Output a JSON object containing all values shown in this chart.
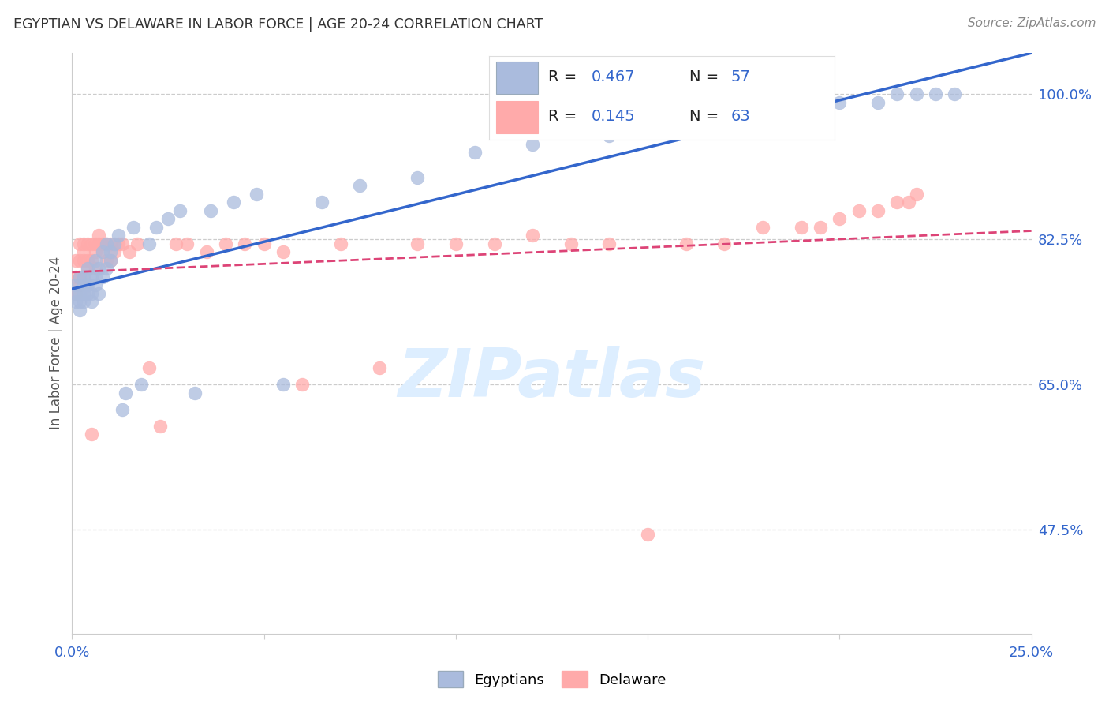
{
  "title": "EGYPTIAN VS DELAWARE IN LABOR FORCE | AGE 20-24 CORRELATION CHART",
  "source": "Source: ZipAtlas.com",
  "ylabel": "In Labor Force | Age 20-24",
  "ytick_labels": [
    "100.0%",
    "82.5%",
    "65.0%",
    "47.5%"
  ],
  "ytick_values": [
    1.0,
    0.825,
    0.65,
    0.475
  ],
  "xlim": [
    0.0,
    0.25
  ],
  "ylim": [
    0.35,
    1.05
  ],
  "watermark": "ZIPatlas",
  "blue_scatter": "#aabbdd",
  "pink_scatter": "#ffaaaa",
  "blue_line": "#3366cc",
  "pink_line": "#dd4477",
  "title_color": "#333333",
  "axis_color": "#3366cc",
  "egyptians_x": [
    0.001,
    0.001,
    0.001,
    0.002,
    0.002,
    0.002,
    0.002,
    0.003,
    0.003,
    0.003,
    0.003,
    0.004,
    0.004,
    0.004,
    0.005,
    0.005,
    0.005,
    0.006,
    0.006,
    0.006,
    0.007,
    0.007,
    0.008,
    0.008,
    0.009,
    0.009,
    0.01,
    0.01,
    0.011,
    0.012,
    0.013,
    0.014,
    0.016,
    0.018,
    0.02,
    0.022,
    0.025,
    0.028,
    0.032,
    0.036,
    0.042,
    0.048,
    0.055,
    0.065,
    0.075,
    0.09,
    0.105,
    0.12,
    0.14,
    0.16,
    0.18,
    0.2,
    0.21,
    0.215,
    0.22,
    0.225,
    0.23
  ],
  "egyptians_y": [
    0.75,
    0.76,
    0.77,
    0.74,
    0.75,
    0.76,
    0.78,
    0.75,
    0.76,
    0.77,
    0.78,
    0.76,
    0.77,
    0.79,
    0.75,
    0.76,
    0.78,
    0.77,
    0.78,
    0.8,
    0.76,
    0.79,
    0.78,
    0.81,
    0.79,
    0.82,
    0.8,
    0.81,
    0.82,
    0.83,
    0.62,
    0.64,
    0.84,
    0.65,
    0.82,
    0.84,
    0.85,
    0.86,
    0.64,
    0.86,
    0.87,
    0.88,
    0.65,
    0.87,
    0.89,
    0.9,
    0.93,
    0.94,
    0.95,
    0.97,
    0.98,
    0.99,
    0.99,
    1.0,
    1.0,
    1.0,
    1.0
  ],
  "delaware_x": [
    0.001,
    0.001,
    0.001,
    0.002,
    0.002,
    0.002,
    0.002,
    0.003,
    0.003,
    0.003,
    0.003,
    0.004,
    0.004,
    0.004,
    0.005,
    0.005,
    0.005,
    0.006,
    0.006,
    0.006,
    0.007,
    0.007,
    0.008,
    0.008,
    0.009,
    0.009,
    0.01,
    0.01,
    0.011,
    0.012,
    0.013,
    0.015,
    0.017,
    0.02,
    0.023,
    0.027,
    0.03,
    0.035,
    0.04,
    0.045,
    0.05,
    0.055,
    0.06,
    0.07,
    0.08,
    0.09,
    0.1,
    0.11,
    0.12,
    0.13,
    0.14,
    0.15,
    0.16,
    0.17,
    0.18,
    0.19,
    0.195,
    0.2,
    0.205,
    0.21,
    0.215,
    0.218,
    0.22
  ],
  "delaware_y": [
    0.76,
    0.78,
    0.8,
    0.77,
    0.78,
    0.8,
    0.82,
    0.78,
    0.8,
    0.81,
    0.82,
    0.79,
    0.8,
    0.82,
    0.59,
    0.8,
    0.82,
    0.81,
    0.82,
    0.79,
    0.83,
    0.82,
    0.81,
    0.82,
    0.8,
    0.82,
    0.82,
    0.8,
    0.81,
    0.82,
    0.82,
    0.81,
    0.82,
    0.67,
    0.6,
    0.82,
    0.82,
    0.81,
    0.82,
    0.82,
    0.82,
    0.81,
    0.65,
    0.82,
    0.67,
    0.82,
    0.82,
    0.82,
    0.83,
    0.82,
    0.82,
    0.47,
    0.82,
    0.82,
    0.84,
    0.84,
    0.84,
    0.85,
    0.86,
    0.86,
    0.87,
    0.87,
    0.88
  ]
}
